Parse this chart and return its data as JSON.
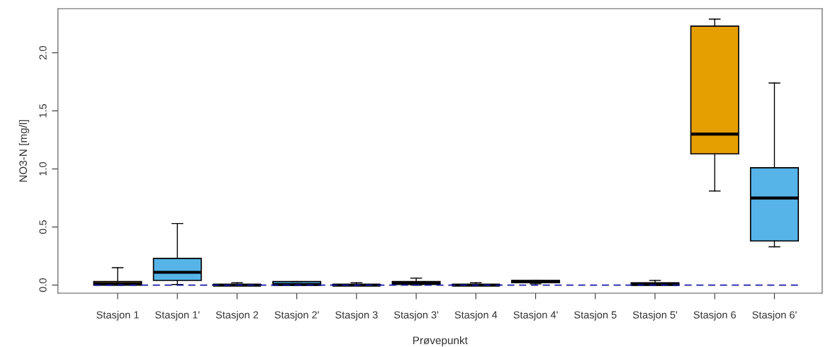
{
  "chart_data": {
    "type": "box",
    "xlabel": "Prøvepunkt",
    "ylabel": "NO3-N [mg/l]",
    "categories": [
      "Stasjon 1",
      "Stasjon 1'",
      "Stasjon 2",
      "Stasjon 2'",
      "Stasjon 3",
      "Stasjon 3'",
      "Stasjon 4",
      "Stasjon 4'",
      "Stasjon 5",
      "Stasjon 5'",
      "Stasjon 6",
      "Stasjon 6'"
    ],
    "colors": [
      "#e69f00",
      "#56b4e9",
      "#e69f00",
      "#56b4e9",
      "#e69f00",
      "#56b4e9",
      "#e69f00",
      "#56b4e9",
      "#e69f00",
      "#56b4e9",
      "#e69f00",
      "#56b4e9"
    ],
    "boxes": [
      {
        "low": 0,
        "q1": 0,
        "median": 0.01,
        "q3": 0.03,
        "high": 0.15
      },
      {
        "low": 0.005,
        "q1": 0.04,
        "median": 0.11,
        "q3": 0.23,
        "high": 0.53
      },
      {
        "low": 0,
        "q1": 0,
        "median": 0,
        "q3": 0.005,
        "high": 0.02
      },
      {
        "low": 0,
        "q1": 0,
        "median": 0.005,
        "q3": 0.03,
        "high": 0.03
      },
      {
        "low": 0,
        "q1": 0,
        "median": 0,
        "q3": 0.005,
        "high": 0.02
      },
      {
        "low": 0,
        "q1": 0.005,
        "median": 0.02,
        "q3": 0.03,
        "high": 0.06
      },
      {
        "low": 0,
        "q1": 0,
        "median": 0,
        "q3": 0.005,
        "high": 0.02
      },
      {
        "low": 0.01,
        "q1": 0.02,
        "median": 0.03,
        "q3": 0.04,
        "high": 0.04
      },
      null,
      {
        "low": 0,
        "q1": 0,
        "median": 0.005,
        "q3": 0.02,
        "high": 0.04
      },
      {
        "low": 0.81,
        "q1": 1.13,
        "median": 1.3,
        "q3": 2.23,
        "high": 2.29
      },
      {
        "low": 0.33,
        "q1": 0.38,
        "median": 0.75,
        "q3": 1.01,
        "high": 1.74
      }
    ],
    "ylim": [
      -0.07,
      2.38
    ],
    "yticks": [
      {
        "value": 0,
        "label": "0.0"
      },
      {
        "value": 0.5,
        "label": "0.5"
      },
      {
        "value": 1,
        "label": "1.0"
      },
      {
        "value": 1.5,
        "label": "1.5"
      },
      {
        "value": 2,
        "label": "2.0"
      }
    ],
    "ref_lines": [
      {
        "axis": "y",
        "value": 0,
        "label": null,
        "color": "#1a1aa6",
        "line_style": "dashed"
      }
    ],
    "grid": false,
    "legend": false
  }
}
